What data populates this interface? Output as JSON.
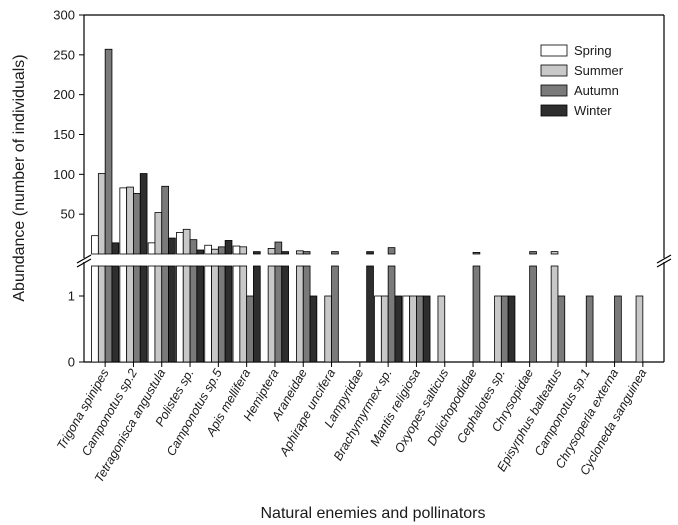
{
  "chart_data": {
    "type": "bar",
    "xlabel": "Natural enemies and pollinators",
    "ylabel": "Abundance (number of individuals)",
    "axis_break": true,
    "upper_segment_ylim": [
      0,
      300
    ],
    "upper_segment_yticks": [
      "50",
      "100",
      "150",
      "200",
      "250",
      "300"
    ],
    "lower_segment_ylim": [
      0,
      1.5
    ],
    "lower_segment_yticks": [
      "0",
      "1"
    ],
    "legend_position": "top-right",
    "categories": [
      "Trigona spinipes",
      "Camponotus sp.2",
      "Tetragonisca angustula",
      "Polistes sp.",
      "Camponotus sp.5",
      "Apis mellifera",
      "Hemiptera",
      "Araneidae",
      "Aphirape uncifera",
      "Lampyridae",
      "Brachymyrmex sp.",
      "Mantis religiosa",
      "Oxyopes salticus",
      "Dolichopodidae",
      "Cephalotes sp.",
      "Chrysopidae",
      "Episyrphus balteatus",
      "Camponotus sp.1",
      "Chrysoperla externa",
      "Cycloneda sanguinea"
    ],
    "series": [
      {
        "name": "Spring",
        "color": "#ffffff",
        "values": [
          23,
          83,
          14,
          27,
          11,
          10,
          0,
          0,
          0,
          0,
          1,
          1,
          0,
          0,
          0,
          0,
          0,
          0,
          0,
          0
        ]
      },
      {
        "name": "Summer",
        "color": "#c8c8c8",
        "values": [
          101,
          84,
          52,
          31,
          6,
          9,
          7,
          4,
          1,
          0,
          1,
          1,
          1,
          0,
          1,
          0,
          3,
          0,
          0,
          1
        ]
      },
      {
        "name": "Autumn",
        "color": "#7a7a7a",
        "values": [
          257,
          76,
          85,
          18,
          9,
          1,
          15,
          3,
          3,
          0,
          8,
          1,
          0,
          2,
          1,
          3,
          1,
          1,
          1,
          0
        ]
      },
      {
        "name": "Winter",
        "color": "#2e2e2e",
        "values": [
          14,
          101,
          20,
          5,
          17,
          3,
          3,
          1,
          0,
          3,
          1,
          1,
          0,
          0,
          1,
          0,
          0,
          0,
          0,
          0
        ]
      }
    ]
  }
}
